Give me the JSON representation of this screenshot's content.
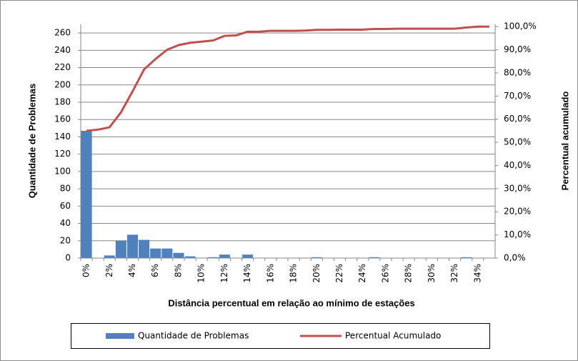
{
  "chart_data": {
    "type": "pareto",
    "x_label": "Distância percentual em relação ao mínimo de estações",
    "y_label": "Quantidade de Problemas",
    "y2_label": "Percentual acumulado",
    "categories": [
      "0%",
      null,
      "2%",
      null,
      "4%",
      null,
      "6%",
      null,
      "8%",
      null,
      "10%",
      null,
      "12%",
      null,
      "14%",
      null,
      "16%",
      null,
      "18%",
      null,
      "20%",
      null,
      "22%",
      null,
      "24%",
      null,
      "26%",
      null,
      "28%",
      null,
      "30%",
      null,
      "32%",
      null,
      "34%",
      null
    ],
    "series": [
      {
        "name": "Quantidade de Problemas",
        "color": "#4f81bd",
        "values": [
          147,
          0,
          3,
          20,
          27,
          21,
          11,
          11,
          6,
          2,
          0,
          1,
          4,
          0,
          4,
          0,
          0,
          0,
          0,
          0,
          1,
          0,
          0,
          0,
          0,
          1,
          0,
          0,
          0,
          0,
          0,
          0,
          0,
          1,
          0,
          0
        ]
      },
      {
        "name": "Percentual Acumulado",
        "color": "#c0504d",
        "axis": "y2",
        "values": [
          55,
          55.5,
          56.5,
          63,
          72,
          81.5,
          86,
          90,
          92,
          93,
          93.5,
          94,
          96,
          96.2,
          97.8,
          97.8,
          98.2,
          98.2,
          98.2,
          98.3,
          98.6,
          98.6,
          98.7,
          98.7,
          98.7,
          99,
          99,
          99.1,
          99.1,
          99.1,
          99.1,
          99.1,
          99.1,
          99.6,
          100,
          100
        ]
      }
    ],
    "ylim": [
      0,
      270
    ],
    "yticks": [
      0,
      20,
      40,
      60,
      80,
      100,
      120,
      140,
      160,
      180,
      200,
      220,
      240,
      260
    ],
    "y2lim": [
      0,
      101
    ],
    "y2ticks": [
      {
        "value": 0,
        "label": "0,0%"
      },
      {
        "value": 10,
        "label": "10,0%"
      },
      {
        "value": 20,
        "label": "20,0%"
      },
      {
        "value": 30,
        "label": "30,0%"
      },
      {
        "value": 40,
        "label": "40,0%"
      },
      {
        "value": 50,
        "label": "50,0%"
      },
      {
        "value": 60,
        "label": "60,0%"
      },
      {
        "value": 70,
        "label": "70,0%"
      },
      {
        "value": 80,
        "label": "80,0%"
      },
      {
        "value": 90,
        "label": "90,0%"
      },
      {
        "value": 100,
        "label": "100,0%"
      }
    ],
    "grid": true,
    "legend": "bottom"
  }
}
